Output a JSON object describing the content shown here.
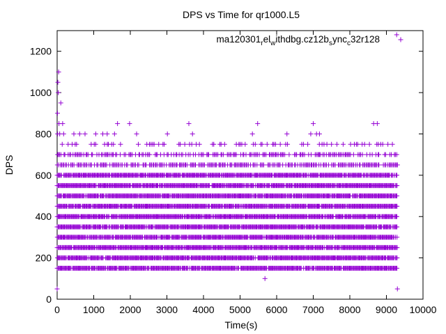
{
  "chart_data": {
    "type": "scatter",
    "title": "DPS vs Time for qr1000.L5",
    "xlabel": "Time(s)",
    "ylabel": "DPS",
    "xlim": [
      0,
      10000
    ],
    "ylim": [
      0,
      1300
    ],
    "x_ticks": [
      0,
      1000,
      2000,
      3000,
      4000,
      5000,
      6000,
      7000,
      8000,
      9000,
      10000
    ],
    "y_ticks": [
      0,
      200,
      400,
      600,
      800,
      1000,
      1200
    ],
    "x_tick_labels": [
      "0",
      "1000",
      "2000",
      "3000",
      "4000",
      "5000",
      "6000",
      "7000",
      "8000",
      "9000",
      "10000"
    ],
    "y_tick_labels": [
      "0",
      "200",
      "400",
      "600",
      "800",
      "1000",
      "1200"
    ],
    "grid": false,
    "legend_position": "top-right",
    "marker": "plus",
    "series": [
      {
        "name": "ma120301_rel_withdbg.cz12b_sync_c32r128",
        "color": "#9400d3",
        "x_range": [
          0,
          9300
        ],
        "dense_levels": [
          150,
          200,
          250,
          300,
          350,
          400,
          450,
          500,
          550,
          600
        ],
        "medium_levels": [
          650,
          700
        ],
        "sparse_levels": [
          750,
          800,
          850
        ],
        "points": [
          [
            0,
            50
          ],
          [
            10,
            900
          ],
          [
            20,
            1050
          ],
          [
            30,
            1000
          ],
          [
            40,
            1100
          ],
          [
            50,
            850
          ],
          [
            70,
            800
          ],
          [
            100,
            950
          ],
          [
            150,
            850
          ],
          [
            9300,
            50
          ],
          [
            5680,
            100
          ],
          [
            1650,
            850
          ],
          [
            1980,
            850
          ],
          [
            3600,
            850
          ],
          [
            5480,
            850
          ],
          [
            7000,
            850
          ],
          [
            8650,
            850
          ],
          [
            8750,
            850
          ],
          [
            9280,
            1280
          ]
        ]
      }
    ]
  }
}
